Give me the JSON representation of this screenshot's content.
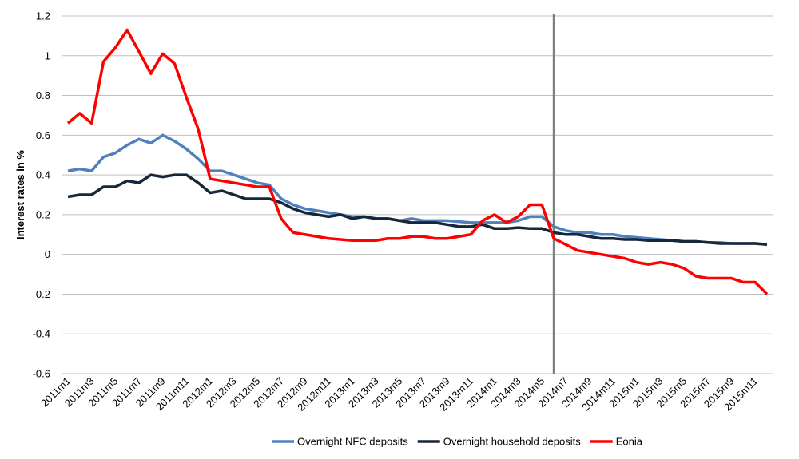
{
  "chart_data": {
    "type": "line",
    "y_label": "Interest rates in %",
    "categories": [
      "2011m1",
      null,
      "2011m3",
      null,
      "2011m5",
      null,
      "2011m7",
      null,
      "2011m9",
      null,
      "2011m11",
      null,
      "2012m1",
      null,
      "2012m3",
      null,
      "2012m5",
      null,
      "2012m7",
      null,
      "2012m9",
      null,
      "2012m11",
      null,
      "2013m1",
      null,
      "2013m3",
      null,
      "2013m5",
      null,
      "2013m7",
      null,
      "2013m9",
      null,
      "2013m11",
      null,
      "2014m1",
      null,
      "2014m3",
      null,
      "2014m5",
      null,
      "2014m7",
      null,
      "2014m9",
      null,
      "2014m11",
      null,
      "2015m1",
      null,
      "2015m3",
      null,
      "2015m5",
      null,
      "2015m7",
      null,
      "2015m9",
      null,
      "2015m11",
      null
    ],
    "series": [
      {
        "name": "Overnight NFC deposits",
        "color": "#4f81bd",
        "values": [
          0.42,
          0.43,
          0.42,
          0.49,
          0.51,
          0.55,
          0.58,
          0.56,
          0.6,
          0.57,
          0.53,
          0.48,
          0.42,
          0.42,
          0.4,
          0.38,
          0.36,
          0.35,
          0.28,
          0.25,
          0.23,
          0.22,
          0.21,
          0.2,
          0.19,
          0.19,
          0.18,
          0.18,
          0.17,
          0.18,
          0.17,
          0.17,
          0.17,
          0.165,
          0.16,
          0.16,
          0.16,
          0.16,
          0.17,
          0.19,
          0.19,
          0.14,
          0.12,
          0.11,
          0.11,
          0.1,
          0.1,
          0.09,
          0.085,
          0.08,
          0.075,
          0.07,
          0.065,
          0.065,
          0.06,
          0.06,
          0.055,
          0.055,
          0.055,
          0.05
        ]
      },
      {
        "name": "Overnight household deposits",
        "color": "#17273a",
        "values": [
          0.29,
          0.3,
          0.3,
          0.34,
          0.34,
          0.37,
          0.36,
          0.4,
          0.39,
          0.4,
          0.4,
          0.36,
          0.31,
          0.32,
          0.3,
          0.28,
          0.28,
          0.28,
          0.26,
          0.23,
          0.21,
          0.2,
          0.19,
          0.2,
          0.18,
          0.19,
          0.18,
          0.18,
          0.17,
          0.16,
          0.16,
          0.16,
          0.15,
          0.14,
          0.14,
          0.15,
          0.13,
          0.13,
          0.135,
          0.13,
          0.13,
          0.11,
          0.1,
          0.1,
          0.09,
          0.08,
          0.08,
          0.075,
          0.075,
          0.07,
          0.07,
          0.07,
          0.065,
          0.065,
          0.06,
          0.055,
          0.055,
          0.055,
          0.055,
          0.05
        ]
      },
      {
        "name": "Eonia",
        "color": "#ff0000",
        "values": [
          0.66,
          0.71,
          0.66,
          0.97,
          1.04,
          1.13,
          1.02,
          0.91,
          1.01,
          0.96,
          0.79,
          0.63,
          0.38,
          0.37,
          0.36,
          0.35,
          0.34,
          0.34,
          0.18,
          0.11,
          0.1,
          0.09,
          0.08,
          0.075,
          0.07,
          0.07,
          0.07,
          0.08,
          0.08,
          0.09,
          0.09,
          0.08,
          0.08,
          0.09,
          0.1,
          0.17,
          0.2,
          0.16,
          0.19,
          0.25,
          0.25,
          0.08,
          0.05,
          0.02,
          0.01,
          0.0,
          -0.01,
          -0.02,
          -0.04,
          -0.05,
          -0.04,
          -0.05,
          -0.07,
          -0.11,
          -0.12,
          -0.12,
          -0.12,
          -0.14,
          -0.14,
          -0.2
        ]
      }
    ],
    "vline_category": 41,
    "vline_color": "#7f7f7f",
    "ylim": [
      -0.6,
      1.2
    ],
    "yticks": [
      -0.6,
      -0.4,
      -0.2,
      0,
      0.2,
      0.4,
      0.6,
      0.8,
      1,
      1.2
    ],
    "grid": true,
    "legend": "bottom"
  }
}
